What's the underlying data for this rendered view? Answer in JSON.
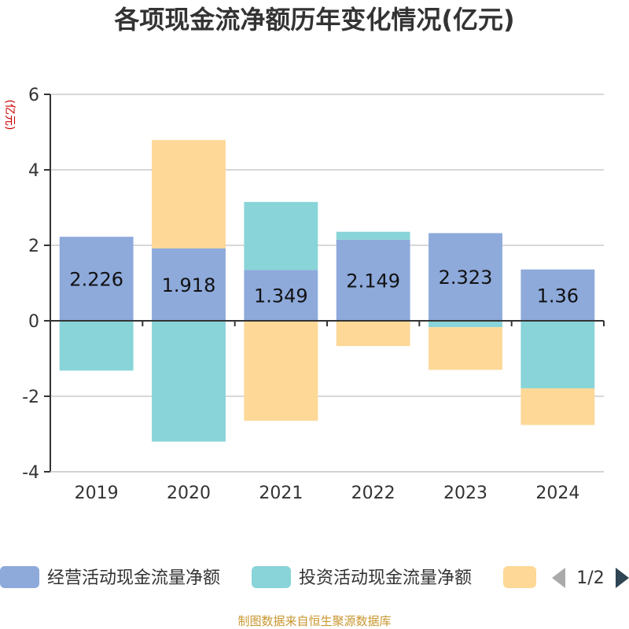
{
  "chart_data": {
    "type": "bar",
    "stacked": true,
    "title": "各项现金流净额历年变化情况(亿元)",
    "ylabel": "(亿元)",
    "xlabel": "",
    "categories": [
      "2019",
      "2020",
      "2021",
      "2022",
      "2023",
      "2024"
    ],
    "ylim": [
      -4,
      6
    ],
    "yticks": [
      -4,
      -2,
      0,
      2,
      4,
      6
    ],
    "grid": true,
    "legend_position": "bottom",
    "series": [
      {
        "name": "经营活动现金流量净额",
        "color": "#8eaadb",
        "values": [
          2.226,
          1.918,
          1.349,
          2.149,
          2.323,
          1.36
        ],
        "labels": [
          "2.226",
          "1.918",
          "1.349",
          "2.149",
          "2.323",
          "1.36"
        ]
      },
      {
        "name": "投资活动现金流量净额",
        "color": "#88d4d8",
        "values": [
          -1.32,
          -3.2,
          1.8,
          0.21,
          -0.17,
          -1.79
        ]
      },
      {
        "name": "",
        "color": "#fdd897",
        "values": [
          0,
          2.87,
          -2.65,
          -0.67,
          -1.13,
          -0.97
        ]
      }
    ]
  },
  "legend": {
    "items": [
      {
        "label": "经营活动现金流量净额",
        "color": "#8eaadb"
      },
      {
        "label": "投资活动现金流量净额",
        "color": "#88d4d8"
      },
      {
        "label": "",
        "color": "#fdd897"
      }
    ],
    "page": "1/2",
    "prev_icon": "triangle-left-icon",
    "next_icon": "triangle-right-icon"
  },
  "footer": {
    "source": "制图数据来自恒生聚源数据库"
  }
}
